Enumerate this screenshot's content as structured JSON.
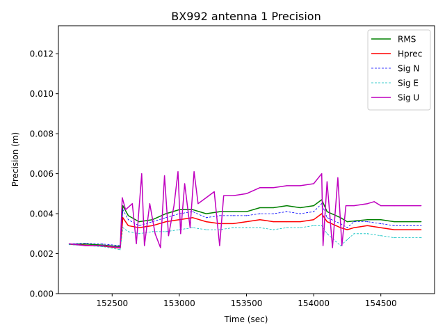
{
  "chart_data": {
    "type": "line",
    "title": "BX992 antenna 1 Precision",
    "xlabel": "Time (sec)",
    "ylabel": "Precision (m)",
    "xlim": [
      152100,
      154900
    ],
    "ylim": [
      0,
      0.0134
    ],
    "xticks": [
      152500,
      153000,
      153500,
      154000,
      154500
    ],
    "xtick_labels": [
      "152500",
      "153000",
      "153500",
      "154000",
      "154500"
    ],
    "yticks": [
      0.0,
      0.002,
      0.004,
      0.006,
      0.008,
      0.01,
      0.012
    ],
    "ytick_labels": [
      "0.000",
      "0.002",
      "0.004",
      "0.006",
      "0.008",
      "0.010",
      "0.012"
    ],
    "grid": false,
    "legend_position": "top-right",
    "series": [
      {
        "name": "RMS",
        "color": "#008000",
        "style": "solid",
        "points": [
          [
            152180,
            0.00248
          ],
          [
            152300,
            0.00248
          ],
          [
            152430,
            0.00243
          ],
          [
            152560,
            0.00235
          ],
          [
            152580,
            0.0044
          ],
          [
            152620,
            0.0039
          ],
          [
            152700,
            0.0036
          ],
          [
            152800,
            0.0037
          ],
          [
            152900,
            0.004
          ],
          [
            153000,
            0.0042
          ],
          [
            153100,
            0.0042
          ],
          [
            153200,
            0.004
          ],
          [
            153300,
            0.0041
          ],
          [
            153400,
            0.0041
          ],
          [
            153500,
            0.0041
          ],
          [
            153600,
            0.0043
          ],
          [
            153700,
            0.0043
          ],
          [
            153800,
            0.0044
          ],
          [
            153900,
            0.0043
          ],
          [
            154000,
            0.0044
          ],
          [
            154060,
            0.0047
          ],
          [
            154100,
            0.0041
          ],
          [
            154200,
            0.0038
          ],
          [
            154250,
            0.0036
          ],
          [
            154400,
            0.0037
          ],
          [
            154500,
            0.0037
          ],
          [
            154600,
            0.0036
          ],
          [
            154800,
            0.0036
          ]
        ]
      },
      {
        "name": "Hprec",
        "color": "#ff0000",
        "style": "solid",
        "points": [
          [
            152180,
            0.00247
          ],
          [
            152300,
            0.00242
          ],
          [
            152430,
            0.00238
          ],
          [
            152560,
            0.00228
          ],
          [
            152580,
            0.0038
          ],
          [
            152620,
            0.0034
          ],
          [
            152700,
            0.0033
          ],
          [
            152800,
            0.0034
          ],
          [
            152900,
            0.0036
          ],
          [
            153000,
            0.0037
          ],
          [
            153100,
            0.0038
          ],
          [
            153200,
            0.0036
          ],
          [
            153300,
            0.0035
          ],
          [
            153400,
            0.0035
          ],
          [
            153500,
            0.0036
          ],
          [
            153600,
            0.0037
          ],
          [
            153700,
            0.0036
          ],
          [
            153800,
            0.0036
          ],
          [
            153900,
            0.0036
          ],
          [
            154000,
            0.0037
          ],
          [
            154060,
            0.004
          ],
          [
            154100,
            0.0036
          ],
          [
            154200,
            0.0033
          ],
          [
            154250,
            0.0032
          ],
          [
            154300,
            0.0033
          ],
          [
            154400,
            0.0034
          ],
          [
            154500,
            0.0033
          ],
          [
            154600,
            0.0032
          ],
          [
            154800,
            0.0032
          ]
        ]
      },
      {
        "name": "Sig N",
        "color": "#0000ff",
        "style": "dashed",
        "points": [
          [
            152180,
            0.00249
          ],
          [
            152300,
            0.00252
          ],
          [
            152430,
            0.00248
          ],
          [
            152560,
            0.0024
          ],
          [
            152580,
            0.0042
          ],
          [
            152620,
            0.0037
          ],
          [
            152700,
            0.0034
          ],
          [
            152800,
            0.0036
          ],
          [
            152900,
            0.0038
          ],
          [
            153000,
            0.004
          ],
          [
            153100,
            0.0041
          ],
          [
            153200,
            0.0038
          ],
          [
            153300,
            0.0039
          ],
          [
            153400,
            0.0039
          ],
          [
            153500,
            0.0039
          ],
          [
            153600,
            0.004
          ],
          [
            153700,
            0.004
          ],
          [
            153800,
            0.0041
          ],
          [
            153900,
            0.004
          ],
          [
            154000,
            0.0041
          ],
          [
            154060,
            0.0045
          ],
          [
            154100,
            0.0038
          ],
          [
            154200,
            0.0035
          ],
          [
            154250,
            0.0033
          ],
          [
            154300,
            0.0036
          ],
          [
            154400,
            0.0036
          ],
          [
            154500,
            0.0035
          ],
          [
            154600,
            0.0034
          ],
          [
            154800,
            0.0034
          ]
        ]
      },
      {
        "name": "Sig E",
        "color": "#00bfbf",
        "style": "dashed",
        "points": [
          [
            152180,
            0.00245
          ],
          [
            152300,
            0.0024
          ],
          [
            152430,
            0.00235
          ],
          [
            152560,
            0.0022
          ],
          [
            152580,
            0.0033
          ],
          [
            152620,
            0.0031
          ],
          [
            152700,
            0.003
          ],
          [
            152800,
            0.0031
          ],
          [
            152900,
            0.0031
          ],
          [
            153000,
            0.0032
          ],
          [
            153100,
            0.0033
          ],
          [
            153200,
            0.0032
          ],
          [
            153300,
            0.0032
          ],
          [
            153400,
            0.0033
          ],
          [
            153500,
            0.0033
          ],
          [
            153600,
            0.0033
          ],
          [
            153700,
            0.0032
          ],
          [
            153800,
            0.0033
          ],
          [
            153900,
            0.0033
          ],
          [
            154000,
            0.0034
          ],
          [
            154060,
            0.0034
          ],
          [
            154100,
            0.003
          ],
          [
            154200,
            0.0024
          ],
          [
            154250,
            0.0027
          ],
          [
            154300,
            0.003
          ],
          [
            154400,
            0.003
          ],
          [
            154500,
            0.0029
          ],
          [
            154600,
            0.0028
          ],
          [
            154800,
            0.0028
          ]
        ]
      },
      {
        "name": "Sig U",
        "color": "#bf00bf",
        "style": "solid",
        "points": [
          [
            152180,
            0.0025
          ],
          [
            152300,
            0.0024
          ],
          [
            152430,
            0.0024
          ],
          [
            152560,
            0.0023
          ],
          [
            152575,
            0.0048
          ],
          [
            152600,
            0.0042
          ],
          [
            152650,
            0.0045
          ],
          [
            152680,
            0.0025
          ],
          [
            152720,
            0.006
          ],
          [
            152740,
            0.0024
          ],
          [
            152780,
            0.0045
          ],
          [
            152820,
            0.003
          ],
          [
            152860,
            0.0023
          ],
          [
            152890,
            0.0059
          ],
          [
            152920,
            0.0029
          ],
          [
            152960,
            0.0044
          ],
          [
            152990,
            0.0061
          ],
          [
            153010,
            0.003
          ],
          [
            153040,
            0.0055
          ],
          [
            153080,
            0.0033
          ],
          [
            153110,
            0.0061
          ],
          [
            153140,
            0.0045
          ],
          [
            153200,
            0.0048
          ],
          [
            153260,
            0.0051
          ],
          [
            153300,
            0.0024
          ],
          [
            153330,
            0.0049
          ],
          [
            153400,
            0.0049
          ],
          [
            153500,
            0.005
          ],
          [
            153600,
            0.0053
          ],
          [
            153700,
            0.0053
          ],
          [
            153800,
            0.0054
          ],
          [
            153900,
            0.0054
          ],
          [
            154000,
            0.0055
          ],
          [
            154060,
            0.006
          ],
          [
            154070,
            0.0024
          ],
          [
            154100,
            0.0056
          ],
          [
            154140,
            0.0023
          ],
          [
            154180,
            0.0058
          ],
          [
            154210,
            0.0024
          ],
          [
            154240,
            0.0044
          ],
          [
            154300,
            0.0044
          ],
          [
            154400,
            0.0045
          ],
          [
            154450,
            0.0046
          ],
          [
            154500,
            0.0044
          ],
          [
            154600,
            0.0044
          ],
          [
            154800,
            0.0044
          ]
        ]
      }
    ]
  }
}
